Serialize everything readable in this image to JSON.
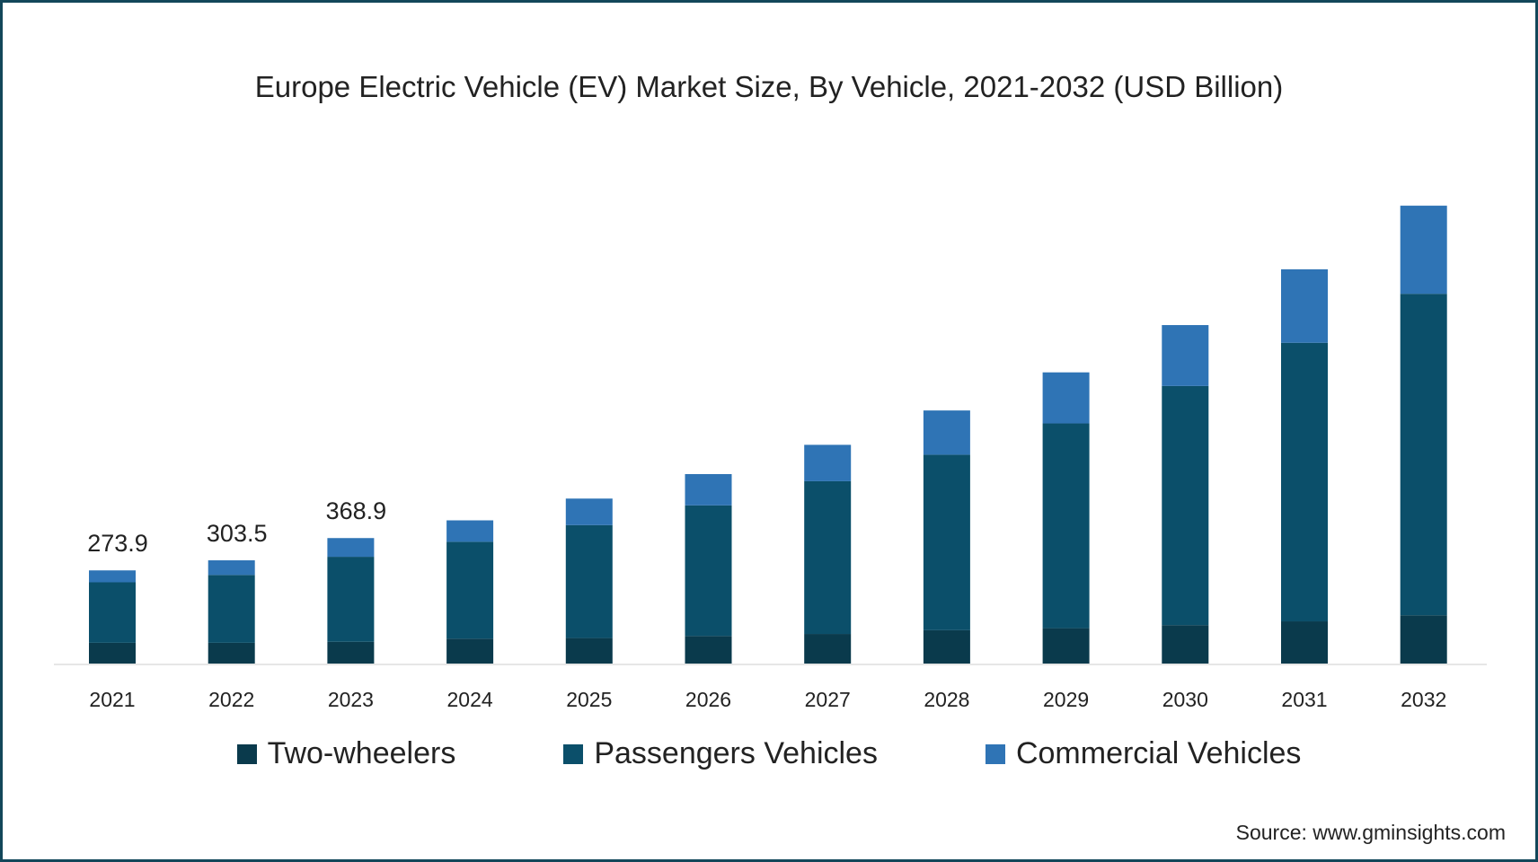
{
  "chart_data": {
    "type": "bar",
    "stacked": true,
    "title": "Europe Electric Vehicle (EV) Market Size, By Vehicle, 2021-2032 (USD Billion)",
    "xlabel": "",
    "ylabel": "",
    "categories": [
      "2021",
      "2022",
      "2023",
      "2024",
      "2025",
      "2026",
      "2027",
      "2028",
      "2029",
      "2030",
      "2031",
      "2032"
    ],
    "series": [
      {
        "name": "Two-wheelers",
        "color": "#0a3a4c",
        "values": [
          61,
          61,
          64,
          73,
          75,
          81,
          87,
          98,
          104,
          113,
          124,
          142
        ]
      },
      {
        "name": "Passengers Vehicles",
        "color": "#0b4f6a",
        "values": [
          177.9,
          199.5,
          249.9,
          285,
          332,
          384,
          449,
          516,
          602,
          703,
          819,
          945
        ]
      },
      {
        "name": "Commercial Vehicles",
        "color": "#2f74b5",
        "values": [
          35,
          43,
          55,
          63,
          78,
          92,
          107,
          130,
          150,
          179,
          216,
          259
        ]
      }
    ],
    "data_labels": {
      "2021": "273.9",
      "2022": "303.5",
      "2023": "368.9"
    },
    "ylim": [
      38,
      1400
    ],
    "grid": false,
    "legend_position": "bottom"
  },
  "source": "Source: www.gminsights.com"
}
